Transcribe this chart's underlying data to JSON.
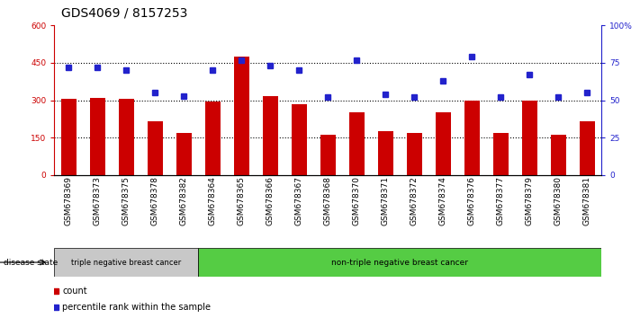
{
  "title": "GDS4069 / 8157253",
  "samples": [
    "GSM678369",
    "GSM678373",
    "GSM678375",
    "GSM678378",
    "GSM678382",
    "GSM678364",
    "GSM678365",
    "GSM678366",
    "GSM678367",
    "GSM678368",
    "GSM678370",
    "GSM678371",
    "GSM678372",
    "GSM678374",
    "GSM678376",
    "GSM678377",
    "GSM678379",
    "GSM678380",
    "GSM678381"
  ],
  "counts": [
    305,
    308,
    305,
    215,
    170,
    295,
    475,
    315,
    285,
    160,
    250,
    175,
    170,
    250,
    300,
    170,
    300,
    160,
    215
  ],
  "percentiles": [
    72,
    72,
    70,
    55,
    53,
    70,
    77,
    73,
    70,
    52,
    77,
    54,
    52,
    63,
    79,
    52,
    67,
    52,
    55
  ],
  "group1_count": 5,
  "group1_label": "triple negative breast cancer",
  "group2_label": "non-triple negative breast cancer",
  "ylim_left": [
    0,
    600
  ],
  "ylim_right": [
    0,
    100
  ],
  "yticks_left": [
    0,
    150,
    300,
    450,
    600
  ],
  "yticks_right": [
    0,
    25,
    50,
    75,
    100
  ],
  "ytick_right_labels": [
    "0",
    "25",
    "50",
    "75",
    "100%"
  ],
  "bar_color": "#cc0000",
  "dot_color": "#2222cc",
  "label_color_left": "#cc0000",
  "label_color_right": "#2222cc",
  "legend_count_label": "count",
  "legend_pct_label": "percentile rank within the sample",
  "disease_state_label": "disease state",
  "group1_bg": "#c8c8c8",
  "group2_bg": "#55cc44",
  "title_fontsize": 10,
  "tick_fontsize": 6.5,
  "grid_color": "black",
  "grid_linestyle": "dotted",
  "grid_linewidth": 0.8,
  "yticks_grid": [
    150,
    300,
    450
  ]
}
